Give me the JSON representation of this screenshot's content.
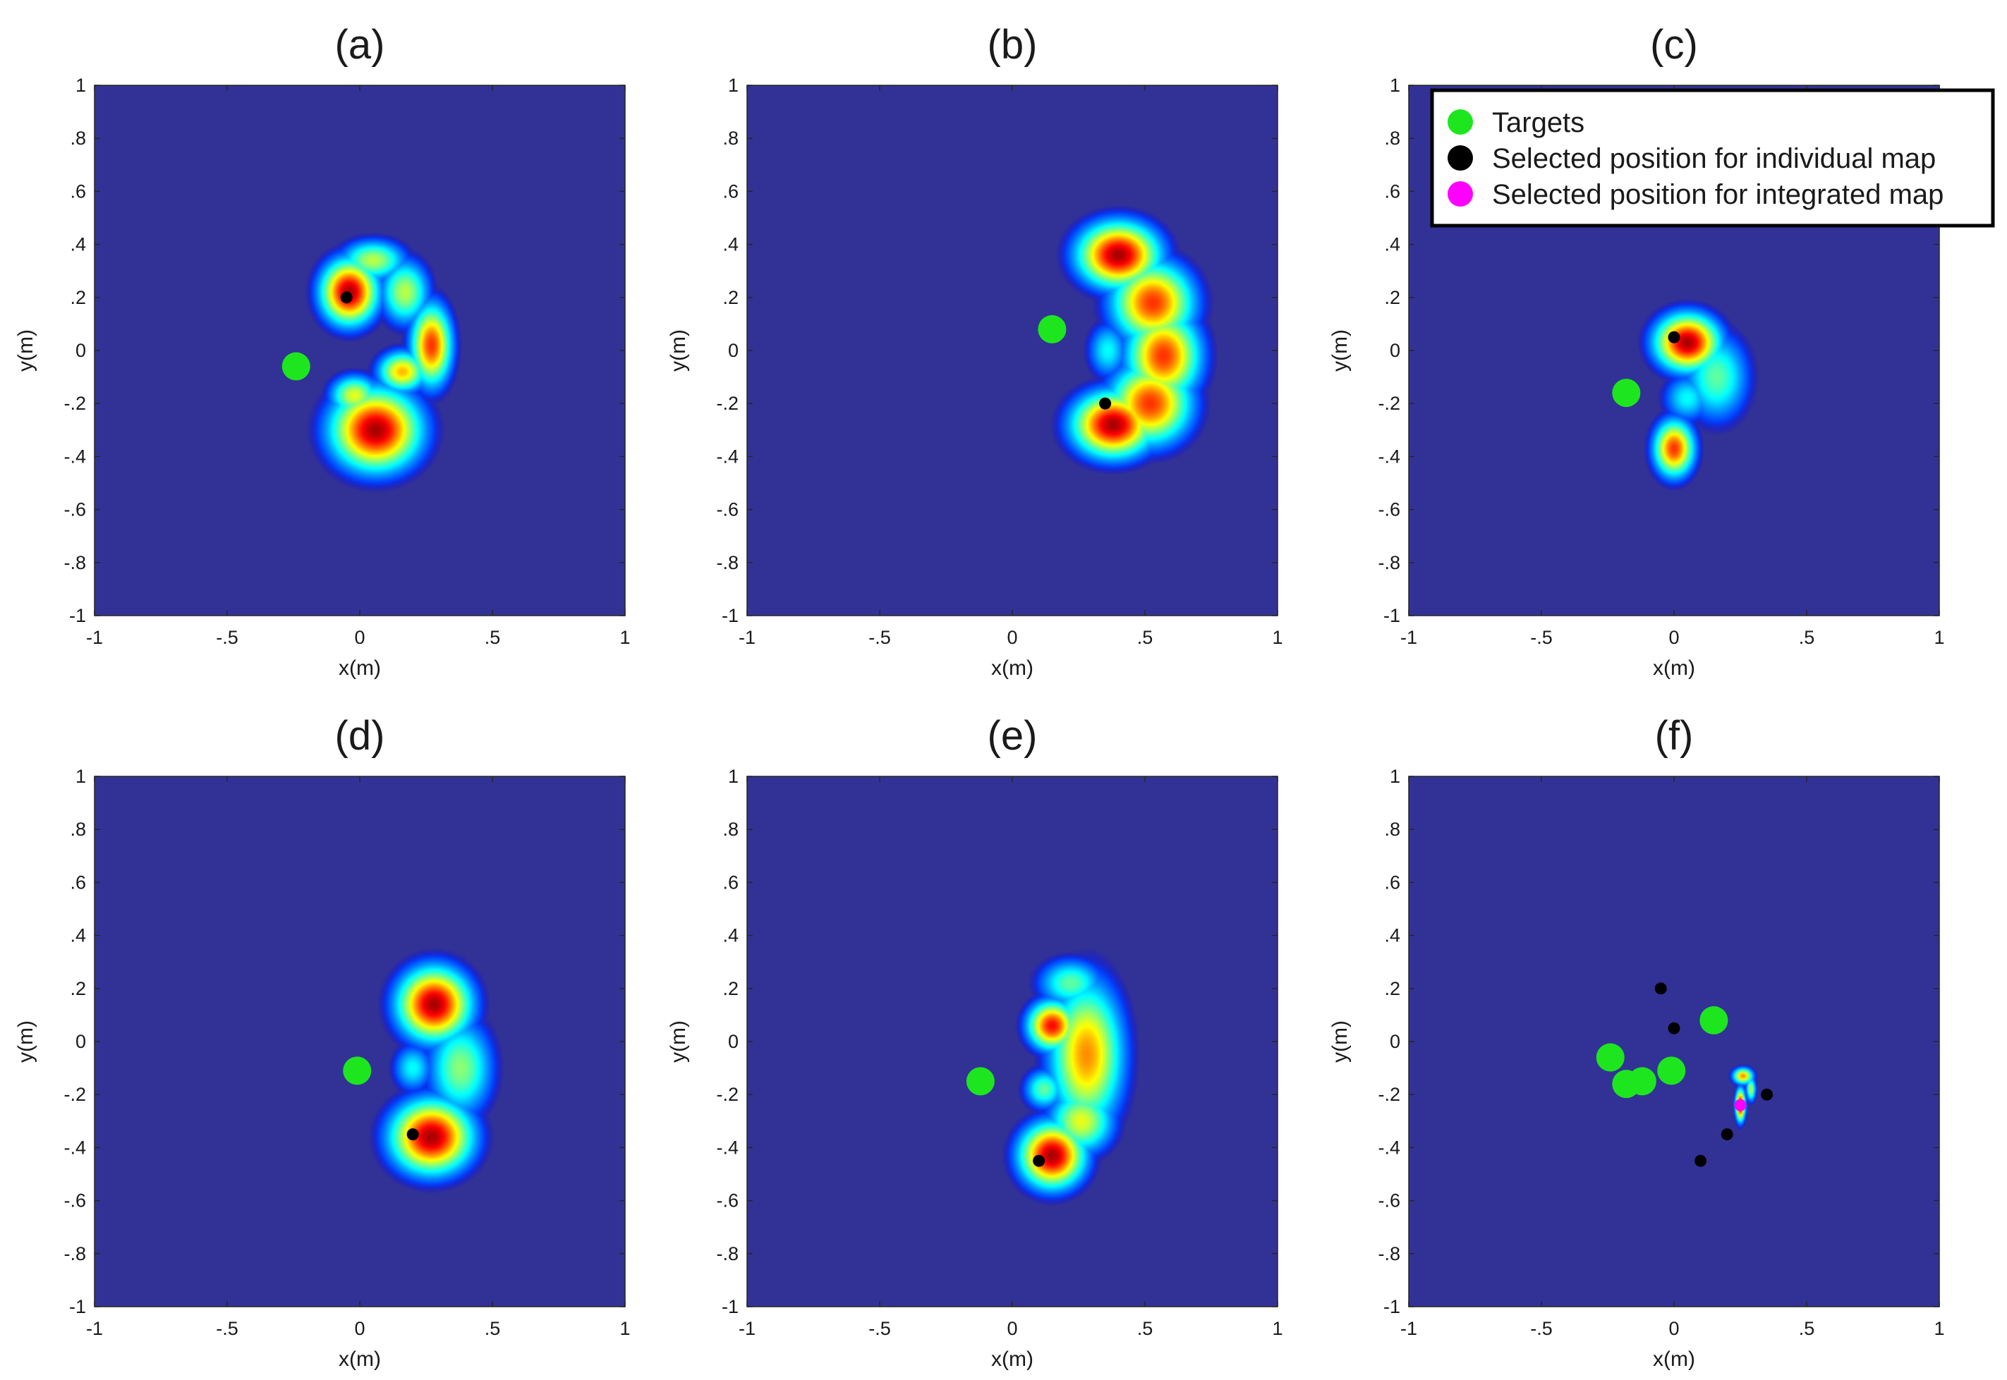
{
  "chart_data": [
    {
      "type": "heatmap",
      "title": "(a)",
      "xlabel": "x(m)",
      "ylabel": "y(m)",
      "xlim": [
        -1,
        1
      ],
      "ylim": [
        -1,
        1
      ],
      "xticks": [
        -1,
        -0.5,
        0,
        0.5,
        1
      ],
      "yticks": [
        1,
        0.8,
        0.6,
        0.4,
        0.2,
        0,
        -0.2,
        -0.4,
        -0.6,
        -0.8,
        -1
      ],
      "background_color": "#323296",
      "targets": [
        {
          "x": -0.24,
          "y": -0.06
        }
      ],
      "selected_individual": [
        {
          "x": -0.05,
          "y": 0.2
        }
      ],
      "selected_integrated": [],
      "blobs": [
        {
          "x": -0.04,
          "y": 0.22,
          "sx": 0.07,
          "sy": 0.08,
          "a": 1.0
        },
        {
          "x": 0.05,
          "y": 0.34,
          "sx": 0.08,
          "sy": 0.05,
          "a": 0.55
        },
        {
          "x": 0.17,
          "y": 0.22,
          "sx": 0.06,
          "sy": 0.08,
          "a": 0.55
        },
        {
          "x": 0.27,
          "y": 0.02,
          "sx": 0.05,
          "sy": 0.1,
          "a": 0.85
        },
        {
          "x": 0.16,
          "y": -0.08,
          "sx": 0.06,
          "sy": 0.05,
          "a": 0.7
        },
        {
          "x": 0.06,
          "y": -0.3,
          "sx": 0.11,
          "sy": 0.1,
          "a": 1.0
        },
        {
          "x": -0.02,
          "y": -0.17,
          "sx": 0.06,
          "sy": 0.05,
          "a": 0.6
        }
      ]
    },
    {
      "type": "heatmap",
      "title": "(b)",
      "xlabel": "x(m)",
      "ylabel": "y(m)",
      "xlim": [
        -1,
        1
      ],
      "ylim": [
        -1,
        1
      ],
      "xticks": [
        -1,
        -0.5,
        0,
        0.5,
        1
      ],
      "yticks": [
        1,
        0.8,
        0.6,
        0.4,
        0.2,
        0,
        -0.2,
        -0.4,
        -0.6,
        -0.8,
        -1
      ],
      "background_color": "#323296",
      "targets": [
        {
          "x": 0.15,
          "y": 0.08
        }
      ],
      "selected_individual": [
        {
          "x": 0.35,
          "y": -0.2
        }
      ],
      "selected_integrated": [],
      "blobs": [
        {
          "x": 0.4,
          "y": 0.36,
          "sx": 0.1,
          "sy": 0.08,
          "a": 1.0
        },
        {
          "x": 0.53,
          "y": 0.18,
          "sx": 0.1,
          "sy": 0.1,
          "a": 0.85
        },
        {
          "x": 0.57,
          "y": -0.02,
          "sx": 0.09,
          "sy": 0.11,
          "a": 0.85
        },
        {
          "x": 0.52,
          "y": -0.2,
          "sx": 0.1,
          "sy": 0.1,
          "a": 0.85
        },
        {
          "x": 0.38,
          "y": -0.28,
          "sx": 0.1,
          "sy": 0.08,
          "a": 1.0
        },
        {
          "x": 0.36,
          "y": 0.0,
          "sx": 0.05,
          "sy": 0.07,
          "a": 0.35
        }
      ]
    },
    {
      "type": "heatmap",
      "title": "(c)",
      "xlabel": "x(m)",
      "ylabel": "y(m)",
      "xlim": [
        -1,
        1
      ],
      "ylim": [
        -1,
        1
      ],
      "xticks": [
        -1,
        -0.5,
        0,
        0.5,
        1
      ],
      "yticks": [
        1,
        0.8,
        0.6,
        0.4,
        0.2,
        0,
        -0.2,
        -0.4,
        -0.6,
        -0.8,
        -1
      ],
      "background_color": "#323296",
      "targets": [
        {
          "x": -0.18,
          "y": -0.16
        }
      ],
      "selected_individual": [
        {
          "x": 0.0,
          "y": 0.05
        }
      ],
      "selected_integrated": [],
      "blobs": [
        {
          "x": 0.05,
          "y": 0.03,
          "sx": 0.08,
          "sy": 0.07,
          "a": 1.0
        },
        {
          "x": 0.0,
          "y": -0.37,
          "sx": 0.05,
          "sy": 0.07,
          "a": 0.85
        },
        {
          "x": 0.16,
          "y": -0.1,
          "sx": 0.08,
          "sy": 0.11,
          "a": 0.45
        },
        {
          "x": 0.05,
          "y": -0.18,
          "sx": 0.06,
          "sy": 0.06,
          "a": 0.35
        }
      ]
    },
    {
      "type": "heatmap",
      "title": "(d)",
      "xlabel": "x(m)",
      "ylabel": "y(m)",
      "xlim": [
        -1,
        1
      ],
      "ylim": [
        -1,
        1
      ],
      "xticks": [
        -1,
        -0.5,
        0,
        0.5,
        1
      ],
      "yticks": [
        1,
        0.8,
        0.6,
        0.4,
        0.2,
        0,
        -0.2,
        -0.4,
        -0.6,
        -0.8,
        -1
      ],
      "background_color": "#323296",
      "targets": [
        {
          "x": -0.01,
          "y": -0.11
        }
      ],
      "selected_individual": [
        {
          "x": 0.2,
          "y": -0.35
        }
      ],
      "selected_integrated": [],
      "blobs": [
        {
          "x": 0.28,
          "y": 0.14,
          "sx": 0.09,
          "sy": 0.09,
          "a": 1.0
        },
        {
          "x": 0.27,
          "y": -0.36,
          "sx": 0.1,
          "sy": 0.09,
          "a": 1.0
        },
        {
          "x": 0.38,
          "y": -0.1,
          "sx": 0.08,
          "sy": 0.12,
          "a": 0.5
        },
        {
          "x": 0.2,
          "y": -0.1,
          "sx": 0.05,
          "sy": 0.06,
          "a": 0.35
        }
      ]
    },
    {
      "type": "heatmap",
      "title": "(e)",
      "xlabel": "x(m)",
      "ylabel": "y(m)",
      "xlim": [
        -1,
        1
      ],
      "ylim": [
        -1,
        1
      ],
      "xticks": [
        -1,
        -0.5,
        0,
        0.5,
        1
      ],
      "yticks": [
        1,
        0.8,
        0.6,
        0.4,
        0.2,
        0,
        -0.2,
        -0.4,
        -0.6,
        -0.8,
        -1
      ],
      "background_color": "#323296",
      "targets": [
        {
          "x": -0.12,
          "y": -0.15
        }
      ],
      "selected_individual": [
        {
          "x": 0.1,
          "y": -0.45
        }
      ],
      "selected_integrated": [],
      "blobs": [
        {
          "x": 0.15,
          "y": 0.06,
          "sx": 0.06,
          "sy": 0.06,
          "a": 0.9
        },
        {
          "x": 0.15,
          "y": -0.43,
          "sx": 0.08,
          "sy": 0.08,
          "a": 1.0
        },
        {
          "x": 0.28,
          "y": -0.05,
          "sx": 0.09,
          "sy": 0.18,
          "a": 0.75
        },
        {
          "x": 0.22,
          "y": 0.22,
          "sx": 0.08,
          "sy": 0.06,
          "a": 0.45
        },
        {
          "x": 0.26,
          "y": -0.3,
          "sx": 0.08,
          "sy": 0.08,
          "a": 0.6
        },
        {
          "x": 0.12,
          "y": -0.18,
          "sx": 0.05,
          "sy": 0.05,
          "a": 0.45
        }
      ]
    },
    {
      "type": "heatmap",
      "title": "(f)",
      "xlabel": "x(m)",
      "ylabel": "y(m)",
      "xlim": [
        -1,
        1
      ],
      "ylim": [
        -1,
        1
      ],
      "xticks": [
        -1,
        -0.5,
        0,
        0.5,
        1
      ],
      "yticks": [
        1,
        0.8,
        0.6,
        0.4,
        0.2,
        0,
        -0.2,
        -0.4,
        -0.6,
        -0.8,
        -1
      ],
      "background_color": "#323296",
      "targets": [
        {
          "x": -0.24,
          "y": -0.06
        },
        {
          "x": 0.15,
          "y": 0.08
        },
        {
          "x": -0.18,
          "y": -0.16
        },
        {
          "x": -0.01,
          "y": -0.11
        },
        {
          "x": -0.12,
          "y": -0.15
        }
      ],
      "selected_individual": [
        {
          "x": -0.05,
          "y": 0.2
        },
        {
          "x": 0.35,
          "y": -0.2
        },
        {
          "x": 0.0,
          "y": 0.05
        },
        {
          "x": 0.2,
          "y": -0.35
        },
        {
          "x": 0.1,
          "y": -0.45
        }
      ],
      "selected_integrated": [
        {
          "x": 0.25,
          "y": -0.24
        }
      ],
      "blobs": [
        {
          "x": 0.25,
          "y": -0.24,
          "sx": 0.012,
          "sy": 0.04,
          "a": 1.0
        },
        {
          "x": 0.26,
          "y": -0.13,
          "sx": 0.025,
          "sy": 0.02,
          "a": 0.75
        },
        {
          "x": 0.29,
          "y": -0.18,
          "sx": 0.012,
          "sy": 0.03,
          "a": 0.55
        }
      ]
    }
  ],
  "legend": {
    "placement": "top-right of panel (c)",
    "items": [
      {
        "label": "Targets",
        "color": "#1ee61e"
      },
      {
        "label": "Selected position for individual map",
        "color": "#000000"
      },
      {
        "label": "Selected position for integrated map",
        "color": "#ff00ff"
      }
    ]
  }
}
